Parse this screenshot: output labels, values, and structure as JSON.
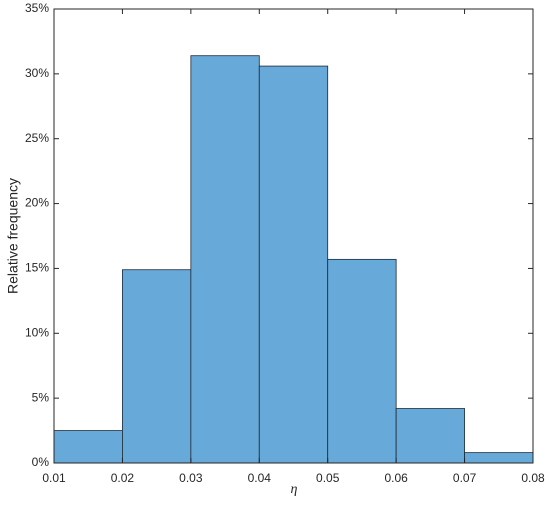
{
  "chart_data": {
    "type": "histogram",
    "xlabel": "η",
    "ylabel": "Relative frequency",
    "bins": [
      0.01,
      0.02,
      0.03,
      0.04,
      0.05,
      0.06,
      0.07,
      0.08
    ],
    "values": [
      2.5,
      14.9,
      31.4,
      30.6,
      15.7,
      4.2,
      0.8
    ],
    "color": "#67a9d9",
    "xlim": [
      0.01,
      0.08
    ],
    "xticks": [
      0.01,
      0.02,
      0.03,
      0.04,
      0.05,
      0.06,
      0.07,
      0.08
    ],
    "ylim": [
      0,
      35
    ],
    "yticks": [
      {
        "value": 0,
        "label": "0%"
      },
      {
        "value": 5,
        "label": "5%"
      },
      {
        "value": 10,
        "label": "10%"
      },
      {
        "value": 15,
        "label": "15%"
      },
      {
        "value": 20,
        "label": "20%"
      },
      {
        "value": 25,
        "label": "25%"
      },
      {
        "value": 30,
        "label": "30%"
      },
      {
        "value": 35,
        "label": "35%"
      }
    ]
  }
}
